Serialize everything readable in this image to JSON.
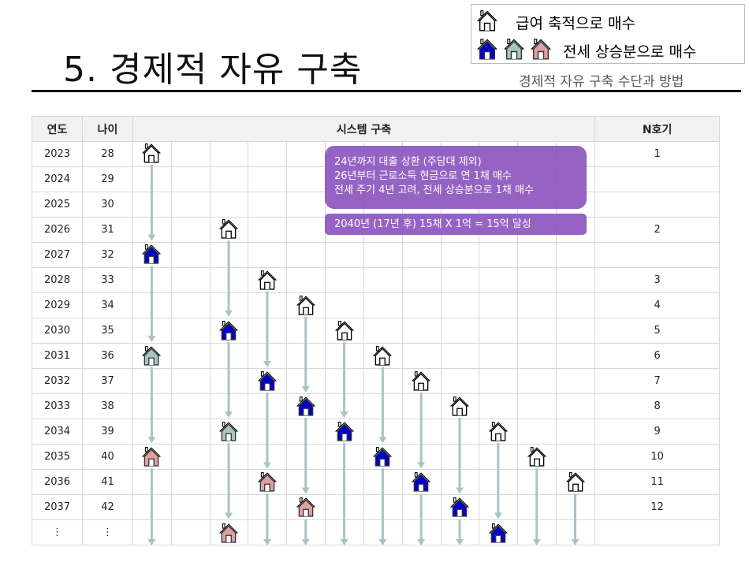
{
  "title": "5. 경제적 자유 구축",
  "subtitle": "경제적 자유 구축 수단과 방법",
  "legend": {
    "salary": "급여 축적으로 매수",
    "jeonse": "전세 상승분으로 매수"
  },
  "colors": {
    "white": "#ffffff",
    "blue": "#0000c8",
    "grey": "#a9c4c4",
    "pink": "#e0a0a0",
    "arrow": "#a9c4c4",
    "box": "#8a52be"
  },
  "table": {
    "headers": {
      "year": "연도",
      "age": "나이",
      "system": "시스템 구축",
      "n": "N호기"
    },
    "rows": [
      {
        "year": "2023",
        "age": "28",
        "n": "1"
      },
      {
        "year": "2024",
        "age": "29",
        "n": ""
      },
      {
        "year": "2025",
        "age": "30",
        "n": ""
      },
      {
        "year": "2026",
        "age": "31",
        "n": "2"
      },
      {
        "year": "2027",
        "age": "32",
        "n": ""
      },
      {
        "year": "2028",
        "age": "33",
        "n": "3"
      },
      {
        "year": "2029",
        "age": "34",
        "n": "4"
      },
      {
        "year": "2030",
        "age": "35",
        "n": "5"
      },
      {
        "year": "2031",
        "age": "36",
        "n": "6"
      },
      {
        "year": "2032",
        "age": "37",
        "n": "7"
      },
      {
        "year": "2033",
        "age": "38",
        "n": "8"
      },
      {
        "year": "2034",
        "age": "39",
        "n": "9"
      },
      {
        "year": "2035",
        "age": "40",
        "n": "10"
      },
      {
        "year": "2036",
        "age": "41",
        "n": "11"
      },
      {
        "year": "2037",
        "age": "42",
        "n": "12"
      },
      {
        "year": "⋮",
        "age": "⋮",
        "n": ""
      }
    ]
  },
  "notes": {
    "line1": "24년까지 대출 상환 (주담대 제외)",
    "line2": "26년부터 근로소득 현금으로 연 1채 매수",
    "line3": "전세 주기 4년 고려, 전세 상승분으로 1채 매수",
    "goal": "2040년 (17년  후) 15채 X 1억 = 15억 달성"
  },
  "houses": [
    {
      "col": 0,
      "items": [
        [
          0,
          "white"
        ],
        [
          4,
          "blue"
        ],
        [
          8,
          "grey"
        ],
        [
          12,
          "pink"
        ]
      ]
    },
    {
      "col": 2,
      "items": [
        [
          3,
          "white"
        ],
        [
          7,
          "blue"
        ],
        [
          11,
          "grey"
        ],
        [
          15,
          "pink"
        ]
      ]
    },
    {
      "col": 3,
      "items": [
        [
          5,
          "white"
        ],
        [
          9,
          "blue"
        ],
        [
          13,
          "pink"
        ]
      ]
    },
    {
      "col": 4,
      "items": [
        [
          6,
          "white"
        ],
        [
          10,
          "blue"
        ],
        [
          14,
          "pink"
        ]
      ]
    },
    {
      "col": 5,
      "items": [
        [
          7,
          "white"
        ],
        [
          11,
          "blue"
        ]
      ]
    },
    {
      "col": 6,
      "items": [
        [
          8,
          "white"
        ],
        [
          12,
          "blue"
        ]
      ]
    },
    {
      "col": 7,
      "items": [
        [
          9,
          "white"
        ],
        [
          13,
          "blue"
        ]
      ]
    },
    {
      "col": 8,
      "items": [
        [
          10,
          "white"
        ],
        [
          14,
          "blue"
        ]
      ]
    },
    {
      "col": 9,
      "items": [
        [
          11,
          "white"
        ],
        [
          15,
          "blue"
        ]
      ]
    },
    {
      "col": 10,
      "items": [
        [
          12,
          "white"
        ]
      ]
    },
    {
      "col": 11,
      "items": [
        [
          13,
          "white"
        ]
      ]
    }
  ]
}
